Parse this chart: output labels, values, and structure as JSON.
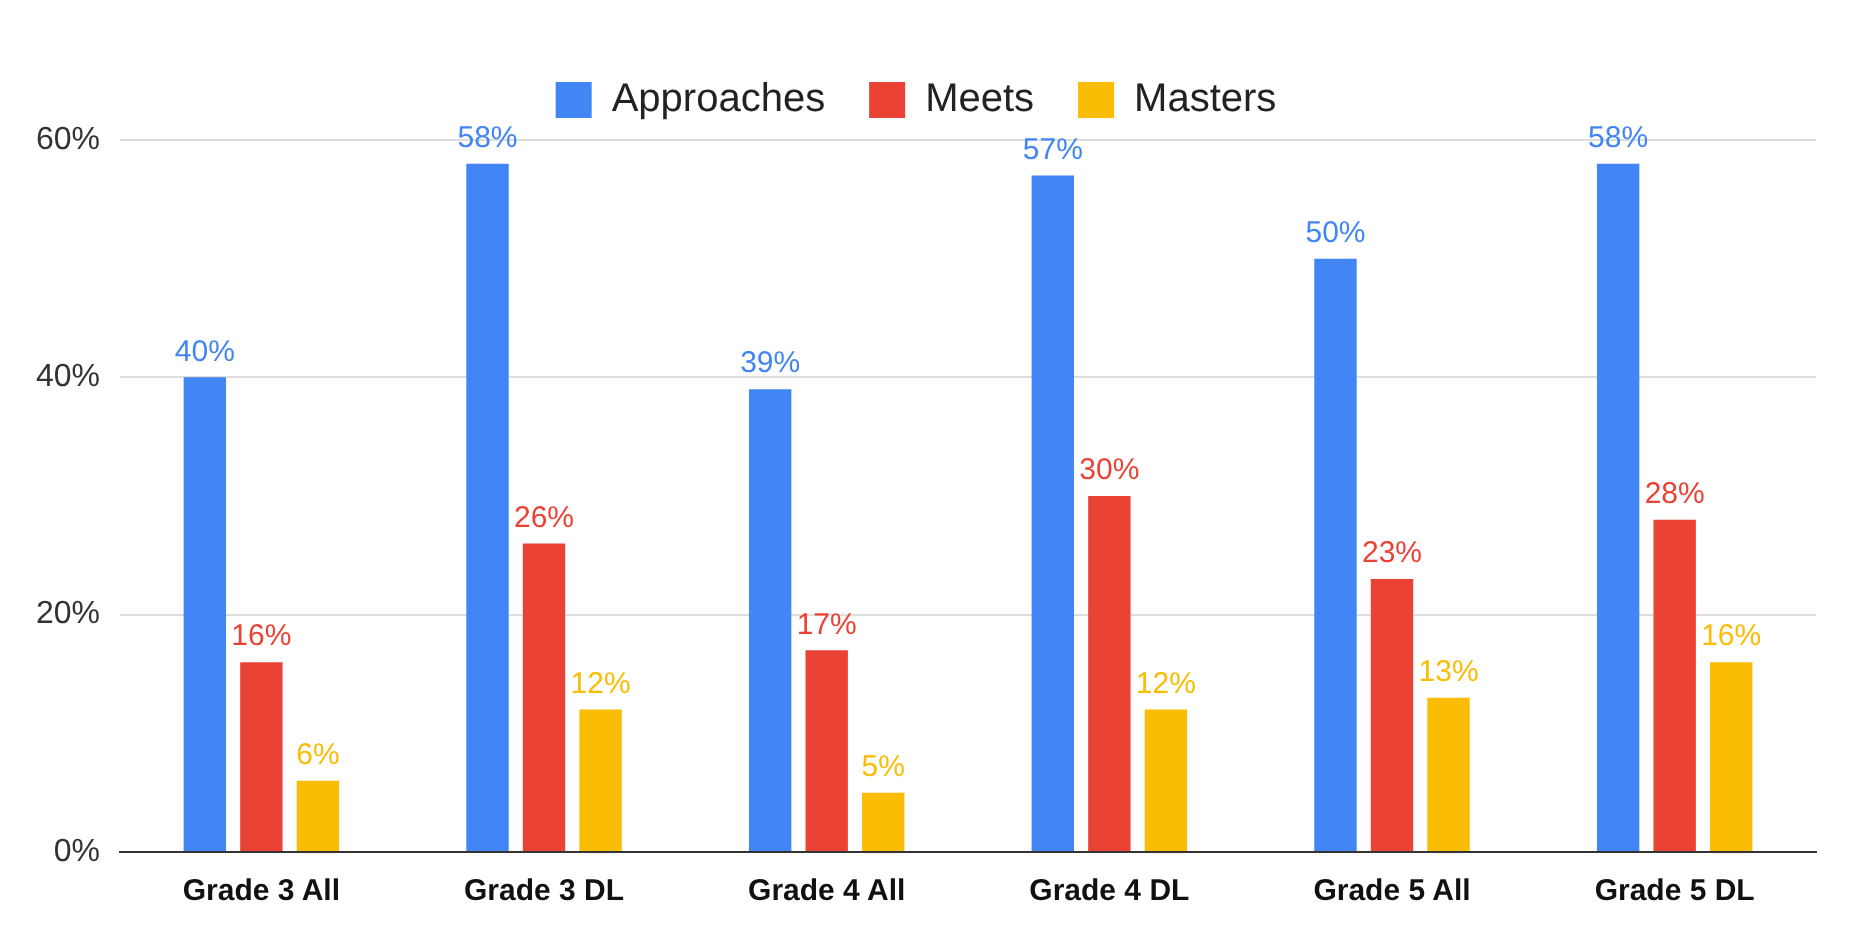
{
  "chart_data": {
    "type": "bar",
    "categories": [
      "Grade 3 All",
      "Grade 3 DL",
      "Grade 4 All",
      "Grade 4 DL",
      "Grade 5 All",
      "Grade 5 DL"
    ],
    "series": [
      {
        "name": "Approaches",
        "color": "#4285f4",
        "values": [
          40,
          58,
          39,
          57,
          50,
          58
        ],
        "value_labels": [
          "40%",
          "58%",
          "39%",
          "57%",
          "50%",
          "58%"
        ]
      },
      {
        "name": "Meets",
        "color": "#ea4335",
        "values": [
          16,
          26,
          17,
          30,
          23,
          28
        ],
        "value_labels": [
          "16%",
          "26%",
          "17%",
          "30%",
          "23%",
          "28%"
        ]
      },
      {
        "name": "Masters",
        "color": "#fbbc04",
        "values": [
          6,
          12,
          5,
          12,
          13,
          16
        ],
        "value_labels": [
          "6%",
          "12%",
          "5%",
          "12%",
          "13%",
          "16%"
        ]
      }
    ],
    "ylim": [
      0,
      60
    ],
    "yticks": [
      {
        "value": 0,
        "label": "0%"
      },
      {
        "value": 20,
        "label": "20%"
      },
      {
        "value": 40,
        "label": "40%"
      },
      {
        "value": 60,
        "label": "60%"
      }
    ],
    "grid": "y",
    "legend": "top"
  }
}
